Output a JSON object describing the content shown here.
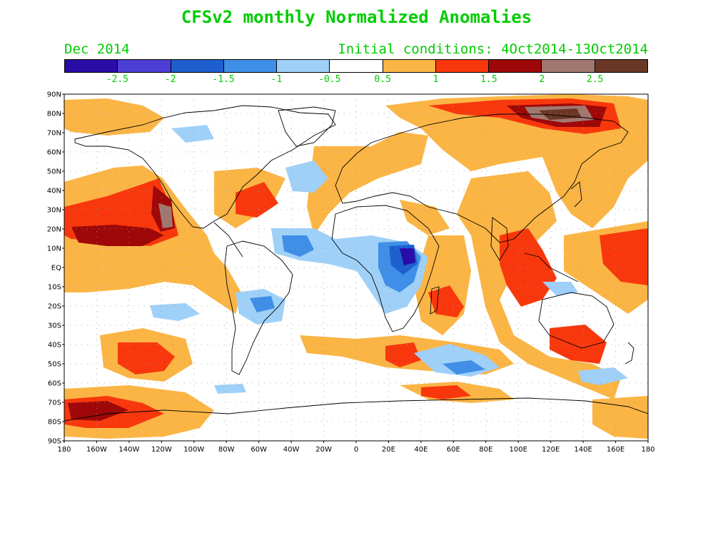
{
  "title": "CFSv2 monthly Normalized Anomalies",
  "valid_month": "Dec 2014",
  "initial_conditions": "Initial conditions: 4Oct2014-13Oct2014",
  "colors": {
    "text": "#00cc00",
    "coast": "#000000",
    "grid": "#9a9a9a"
  },
  "legend": {
    "colors": [
      "#2a0ca6",
      "#4d3fd6",
      "#1e5fce",
      "#3f8ee8",
      "#9fd0f8",
      "#ffffff",
      "#fbb545",
      "#f8380c",
      "#9e0808",
      "#a07870",
      "#6a3626"
    ],
    "labels": [
      "-2.5",
      "-2",
      "-1.5",
      "-1",
      "-0.5",
      "0.5",
      "1",
      "1.5",
      "2",
      "2.5"
    ]
  },
  "axes": {
    "lat_labels": [
      "90N",
      "80N",
      "70N",
      "60N",
      "50N",
      "40N",
      "30N",
      "20N",
      "10N",
      "EQ",
      "10S",
      "20S",
      "30S",
      "40S",
      "50S",
      "60S",
      "70S",
      "80S",
      "90S"
    ],
    "lon_labels": [
      "180",
      "160W",
      "140W",
      "120W",
      "100W",
      "80W",
      "60W",
      "40W",
      "20W",
      "0",
      "20E",
      "40E",
      "60E",
      "80E",
      "100E",
      "120E",
      "140E",
      "160E",
      "180"
    ]
  }
}
